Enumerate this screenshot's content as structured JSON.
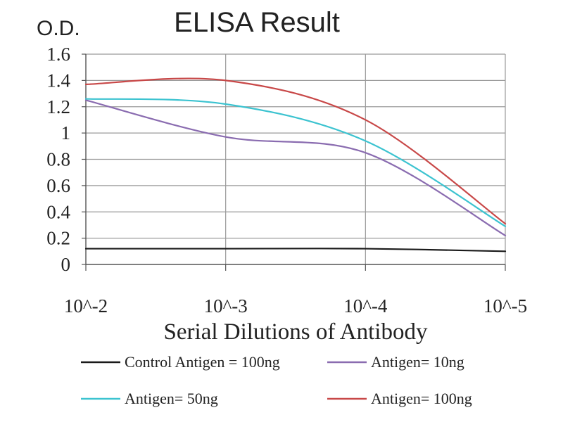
{
  "chart_data": {
    "type": "line",
    "title": "ELISA Result",
    "ylabel": "O.D.",
    "xlabel": "Serial Dilutions of Antibody",
    "x": [
      "10^-2",
      "10^-3",
      "10^-4",
      "10^-5"
    ],
    "ylim": [
      0,
      1.6
    ],
    "yticks": [
      "0",
      "0.2",
      "0.4",
      "0.6",
      "0.8",
      "1",
      "1.2",
      "1.4",
      "1.6"
    ],
    "grid": true,
    "legend_position": "bottom",
    "series": [
      {
        "name": "Control Antigen = 100ng",
        "color": "#1a1a1a",
        "values": [
          0.12,
          0.12,
          0.12,
          0.1
        ]
      },
      {
        "name": "Antigen= 10ng",
        "color": "#8a6cb0",
        "values": [
          1.25,
          0.97,
          0.85,
          0.22
        ]
      },
      {
        "name": "Antigen= 50ng",
        "color": "#3cc3d0",
        "values": [
          1.26,
          1.22,
          0.94,
          0.29
        ]
      },
      {
        "name": "Antigen= 100ng",
        "color": "#c84848",
        "values": [
          1.37,
          1.4,
          1.1,
          0.31
        ]
      }
    ]
  }
}
